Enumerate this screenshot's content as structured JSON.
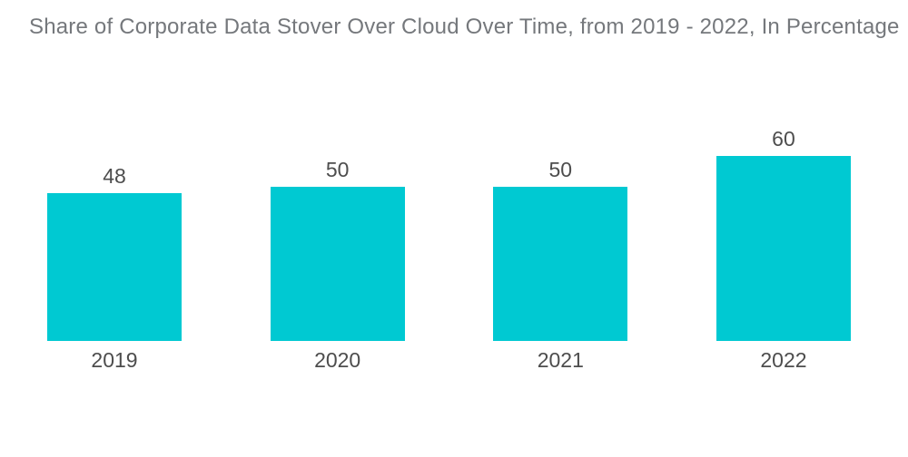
{
  "title": "Share of Corporate Data Stover Over Cloud Over Time, from 2019 - 2022, In Percentage",
  "colors": {
    "bar": "#00C9D2",
    "title_text": "#75787C",
    "label_text": "#4D4D4D",
    "background": "#FFFFFF"
  },
  "chart_data": {
    "type": "bar",
    "title": "Share of Corporate Data Stover Over Cloud Over Time, from 2019 - 2022, In Percentage",
    "categories": [
      "2019",
      "2020",
      "2021",
      "2022"
    ],
    "values": [
      48,
      50,
      50,
      60
    ],
    "value_labels": [
      "48",
      "50",
      "50",
      "60"
    ],
    "xlabel": "",
    "ylabel": "",
    "ylim": [
      0,
      60
    ],
    "grid": false,
    "legend": false,
    "axes_visible": false,
    "bar_color": "#00C9D2"
  }
}
